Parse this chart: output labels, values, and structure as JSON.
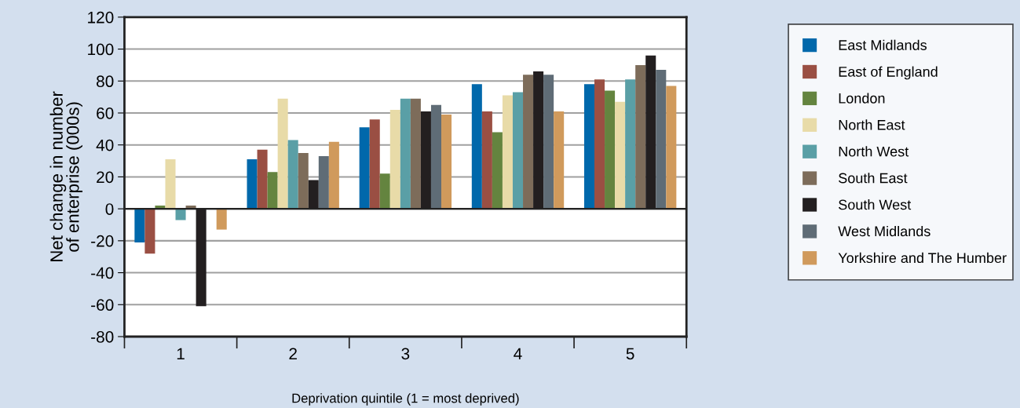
{
  "chart_data": {
    "type": "bar",
    "xlabel": "Deprivation quintile (1 = most deprived)",
    "ylabel": "Net change in number\nof enterprise (000s)",
    "categories": [
      "1",
      "2",
      "3",
      "4",
      "5"
    ],
    "series": [
      {
        "name": "East Midlands",
        "color": "#0068ab",
        "values": [
          -21,
          31,
          51,
          78,
          78
        ]
      },
      {
        "name": "East of England",
        "color": "#9a4f43",
        "values": [
          -28,
          37,
          56,
          61,
          81
        ]
      },
      {
        "name": "London",
        "color": "#64843f",
        "values": [
          2,
          23,
          22,
          48,
          74
        ]
      },
      {
        "name": "North East",
        "color": "#e8dba8",
        "values": [
          31,
          69,
          62,
          71,
          67
        ]
      },
      {
        "name": "North West",
        "color": "#5a9fa6",
        "values": [
          -7,
          43,
          69,
          73,
          81
        ]
      },
      {
        "name": "South East",
        "color": "#7d6c5a",
        "values": [
          2,
          35,
          69,
          84,
          90
        ]
      },
      {
        "name": "South West",
        "color": "#231f20",
        "values": [
          -61,
          18,
          61,
          86,
          96
        ]
      },
      {
        "name": "West Midlands",
        "color": "#5f6c76",
        "values": [
          0,
          33,
          65,
          84,
          87
        ]
      },
      {
        "name": "Yorkshire and The Humber",
        "color": "#d09a5c",
        "values": [
          -13,
          42,
          59,
          61,
          77
        ]
      }
    ],
    "ylim": [
      -80,
      120
    ],
    "yticks": [
      -80,
      -60,
      -40,
      -20,
      0,
      20,
      40,
      60,
      80,
      100,
      120
    ],
    "grid": "y",
    "legend": "right"
  }
}
